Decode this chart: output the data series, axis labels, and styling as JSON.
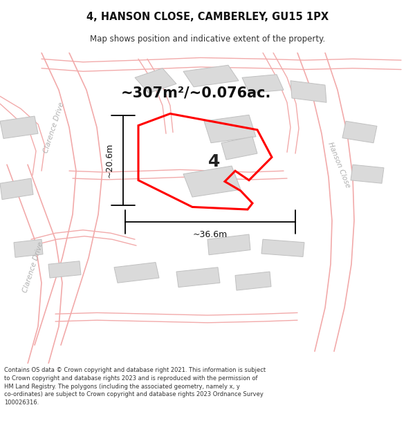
{
  "title": "4, HANSON CLOSE, CAMBERLEY, GU15 1PX",
  "subtitle": "Map shows position and indicative extent of the property.",
  "area_text": "~307m²/~0.076ac.",
  "dim_width": "~36.6m",
  "dim_height": "~20.6m",
  "plot_number": "4",
  "footer": "Contains OS data © Crown copyright and database right 2021. This information is subject to Crown copyright and database rights 2023 and is reproduced with the permission of HM Land Registry. The polygons (including the associated geometry, namely x, y co-ordinates) are subject to Crown copyright and database rights 2023 Ordnance Survey 100026316.",
  "bg_color": "#ffffff",
  "map_bg": "#f9f9f7",
  "road_fill": "#ffffff",
  "road_line": "#f2aaaa",
  "building_fill": "#dadada",
  "building_edge": "#c0c0c0",
  "plot_color": "#ff0000",
  "label_color": "#c0c0c0",
  "text_dark": "#111111"
}
